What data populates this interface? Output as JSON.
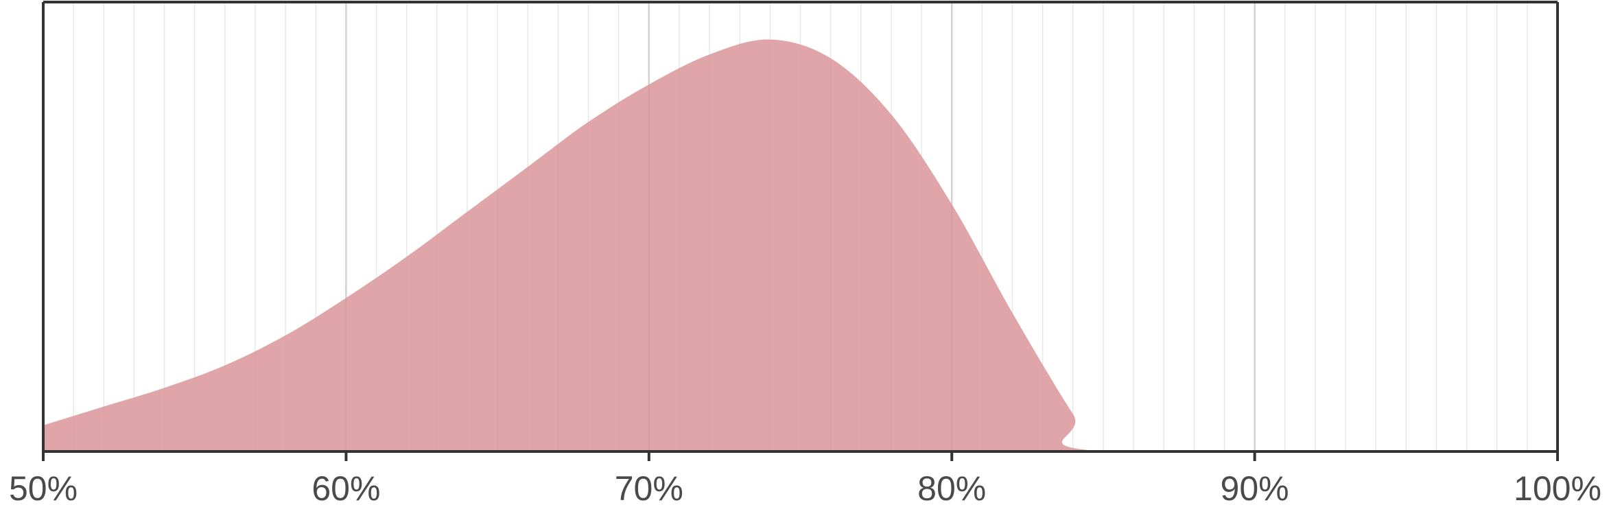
{
  "chart_data": {
    "type": "area",
    "title": "",
    "xlabel": "",
    "ylabel": "",
    "xlim": [
      50,
      100
    ],
    "ylim": [
      0,
      1.2
    ],
    "grid": "vertical",
    "x_tick_values": [
      50,
      60,
      70,
      80,
      90,
      100
    ],
    "x_tick_labels": [
      "50%",
      "60%",
      "70%",
      "80%",
      "90%",
      "100%"
    ],
    "minor_grid_step": 1,
    "fill_color": "#d9959a",
    "axis_color": "#333333",
    "grid_color": "#dcdcdc",
    "series": [
      {
        "x": [
          50,
          52,
          54,
          56,
          58,
          60,
          62,
          64,
          66,
          68,
          70,
          72,
          74,
          76,
          78,
          80,
          82,
          84,
          85,
          100
        ],
        "y": [
          0.07,
          0.12,
          0.17,
          0.23,
          0.31,
          0.41,
          0.52,
          0.64,
          0.76,
          0.88,
          0.98,
          1.06,
          1.1,
          1.05,
          0.9,
          0.66,
          0.37,
          0.1,
          0.0,
          0.0
        ]
      }
    ]
  }
}
